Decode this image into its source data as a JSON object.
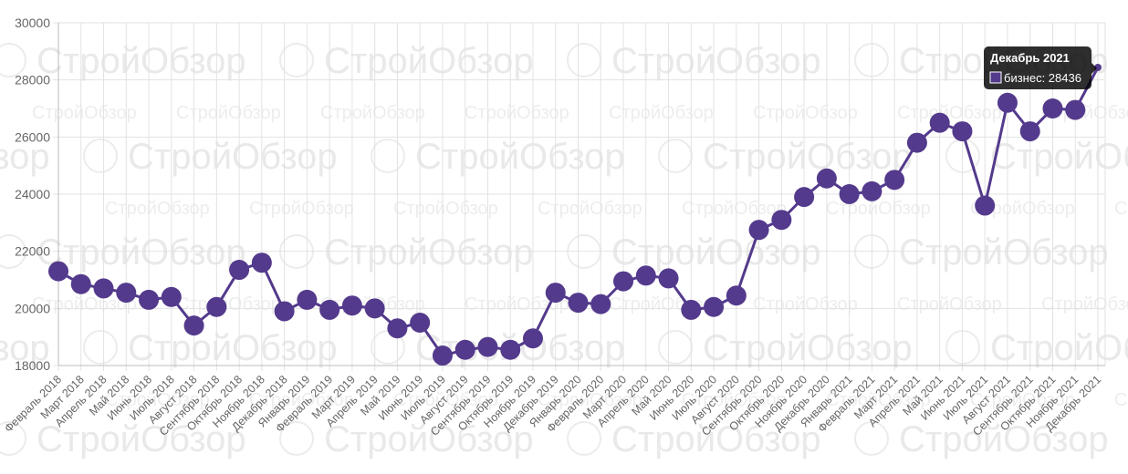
{
  "chart_data": {
    "type": "line",
    "ylim": [
      18000,
      30000
    ],
    "y_ticks": [
      18000,
      20000,
      22000,
      24000,
      26000,
      28000,
      30000
    ],
    "grid": true,
    "categories": [
      "Февраль 2018",
      "Март 2018",
      "Апрель 2018",
      "Май 2018",
      "Июнь 2018",
      "Июль 2018",
      "Август 2018",
      "Сентябрь 2018",
      "Октябрь 2018",
      "Ноябрь 2018",
      "Декабрь 2018",
      "Январь 2019",
      "Февраль 2019",
      "Март 2019",
      "Апрель 2019",
      "Май 2019",
      "Июнь 2019",
      "Июль 2019",
      "Август 2019",
      "Сентябрь 2019",
      "Октябрь 2019",
      "Ноябрь 2019",
      "Декабрь 2019",
      "Январь 2020",
      "Февраль 2020",
      "Март 2020",
      "Апрель 2020",
      "Май 2020",
      "Июнь 2020",
      "Июль 2020",
      "Август 2020",
      "Сентябрь 2020",
      "Октябрь 2020",
      "Ноябрь 2020",
      "Декабрь 2020",
      "Январь 2021",
      "Февраль 2021",
      "Март 2021",
      "Апрель 2021",
      "Май 2021",
      "Июнь 2021",
      "Июль 2021",
      "Август 2021",
      "Сентябрь 2021",
      "Октябрь 2021",
      "Ноябрь 2021",
      "Декабрь 2021"
    ],
    "series": [
      {
        "name": "бизнес",
        "color": "#533a8c",
        "values": [
          21300,
          20850,
          20700,
          20550,
          20300,
          20400,
          19400,
          20050,
          21350,
          21600,
          19900,
          20300,
          19950,
          20100,
          20000,
          19300,
          19500,
          18350,
          18550,
          18650,
          18550,
          18950,
          20550,
          20200,
          20150,
          20950,
          21150,
          21050,
          19950,
          20050,
          20450,
          22750,
          23100,
          23900,
          24550,
          24000,
          24100,
          24500,
          25800,
          26500,
          26200,
          23600,
          27200,
          26200,
          27000,
          26950,
          28436
        ]
      }
    ],
    "tooltip": {
      "title": "Декабрь 2021",
      "series_label": "бизнес",
      "value": 28436
    }
  },
  "watermark": "СтройОбзор"
}
